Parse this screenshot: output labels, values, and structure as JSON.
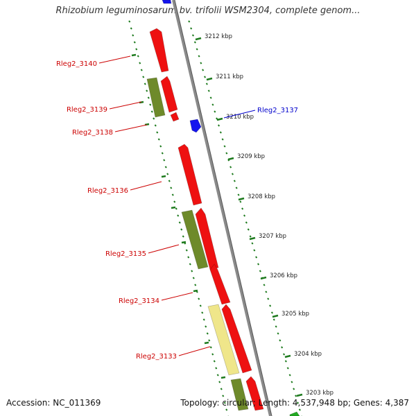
{
  "title": "Rhizobium leguminosarum bv. trifolii WSM2304, complete genom...",
  "footer": {
    "accession": "Accession: NC_011369",
    "topology": "Topology: circular; Length: 4,537,948 bp; Genes: 4,387"
  },
  "colors": {
    "backbone": "#8a8a8a",
    "tick": "#1d7a1d",
    "gene_red": "#ee1111",
    "gene_olive": "#6e8a2a",
    "gene_yellow": "#efe68a",
    "gene_blue": "#1515ee",
    "label_red": "#cc0000",
    "label_blue": "#0000cc"
  },
  "tick_labels": [
    "3212 kbp",
    "3211 kbp",
    "3210 kbp",
    "3209 kbp",
    "3208 kbp",
    "3207 kbp",
    "3206 kbp",
    "3205 kbp",
    "3204 kbp",
    "3203 kbp"
  ],
  "genes": [
    {
      "label": "Rleg2_3140",
      "color": "red"
    },
    {
      "label": "Rleg2_3139",
      "color": "red"
    },
    {
      "label": "Rleg2_3138",
      "color": "red"
    },
    {
      "label": "Rleg2_3137",
      "color": "blue"
    },
    {
      "label": "Rleg2_3136",
      "color": "red"
    },
    {
      "label": "Rleg2_3135",
      "color": "red"
    },
    {
      "label": "Rleg2_3134",
      "color": "red"
    },
    {
      "label": "Rleg2_3133",
      "color": "red"
    }
  ]
}
